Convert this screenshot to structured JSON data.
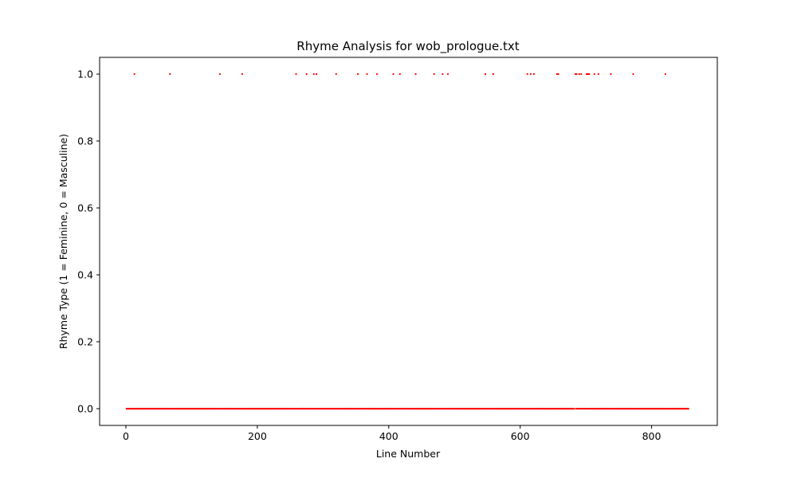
{
  "chart_data": {
    "type": "scatter",
    "title": "Rhyme Analysis for wob_prologue.txt",
    "xlabel": "Line Number",
    "ylabel": "Rhyme Type (1 = Feminine, 0 = Masculine)",
    "xlim": [
      -40,
      900
    ],
    "ylim": [
      -0.05,
      1.05
    ],
    "xticks": [
      0,
      200,
      400,
      600,
      800
    ],
    "yticks": [
      "0.0",
      "0.2",
      "0.4",
      "0.6",
      "0.8",
      "1.0"
    ],
    "grid": false,
    "marker_color": "#ff0000",
    "x_range": [
      1,
      856
    ],
    "excluded_x": [
      172,
      261,
      300,
      357,
      544,
      638,
      683,
      688,
      695,
      742
    ],
    "feminine_x": [
      13,
      67,
      143,
      177,
      259,
      275,
      286,
      290,
      320,
      353,
      367,
      382,
      407,
      417,
      441,
      469,
      482,
      490,
      547,
      559,
      611,
      616,
      621,
      656,
      658,
      684,
      686,
      688,
      690,
      693,
      695,
      701,
      703,
      705,
      713,
      719,
      738,
      772,
      821
    ]
  }
}
